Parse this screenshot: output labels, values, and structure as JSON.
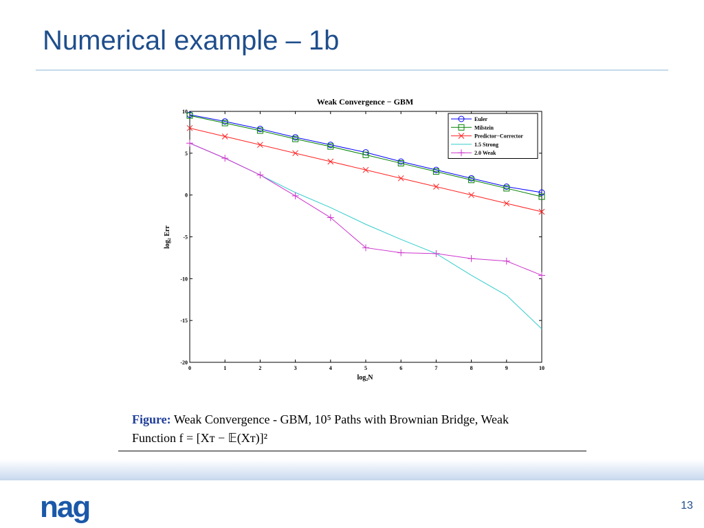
{
  "slide": {
    "title": "Numerical example – 1b",
    "logo": "nag",
    "page_number": "13"
  },
  "chart_data": {
    "type": "line",
    "title": "Weak Convergence − GBM",
    "xlabel": "log₂N",
    "ylabel": "log₂ Err",
    "x": [
      0,
      1,
      2,
      3,
      4,
      5,
      6,
      7,
      8,
      9,
      10
    ],
    "xlim": [
      0,
      10
    ],
    "ylim": [
      -20,
      10
    ],
    "xticks": [
      0,
      1,
      2,
      3,
      4,
      5,
      6,
      7,
      8,
      9,
      10
    ],
    "yticks": [
      -20,
      -15,
      -10,
      -5,
      0,
      5,
      10
    ],
    "legend": "northeast",
    "series": [
      {
        "name": "Euler",
        "color": "#0000ff",
        "marker": "circle",
        "values": [
          9.6,
          8.8,
          7.9,
          6.9,
          6.0,
          5.1,
          4.0,
          3.0,
          2.0,
          1.0,
          0.3
        ]
      },
      {
        "name": "Milstein",
        "color": "#008000",
        "marker": "square",
        "values": [
          9.5,
          8.6,
          7.7,
          6.7,
          5.8,
          4.8,
          3.8,
          2.8,
          1.8,
          0.8,
          -0.2
        ]
      },
      {
        "name": "Predictor−Corrector",
        "color": "#ff2020",
        "marker": "x",
        "values": [
          8.0,
          7.0,
          6.0,
          5.0,
          4.0,
          3.0,
          2.0,
          1.0,
          0.0,
          -1.0,
          -2.0
        ]
      },
      {
        "name": "1.5 Strong",
        "color": "#33cccc",
        "marker": "none",
        "values": [
          6.2,
          4.4,
          2.4,
          0.3,
          -1.5,
          -3.5,
          -5.3,
          -7.0,
          -9.6,
          -12.0,
          -16.0
        ]
      },
      {
        "name": "2.0 Weak",
        "color": "#cc33cc",
        "marker": "plus",
        "values": [
          6.2,
          4.4,
          2.4,
          -0.1,
          -2.7,
          -6.3,
          -6.9,
          -7.0,
          -7.6,
          -7.9,
          -9.6
        ]
      }
    ]
  },
  "caption": {
    "label": "Figure:",
    "line1": "Weak Convergence - GBM, 10⁵ Paths with Brownian Bridge, Weak",
    "line2": "Function f = [Xᴛ − 𝔼(Xᴛ)]²"
  }
}
